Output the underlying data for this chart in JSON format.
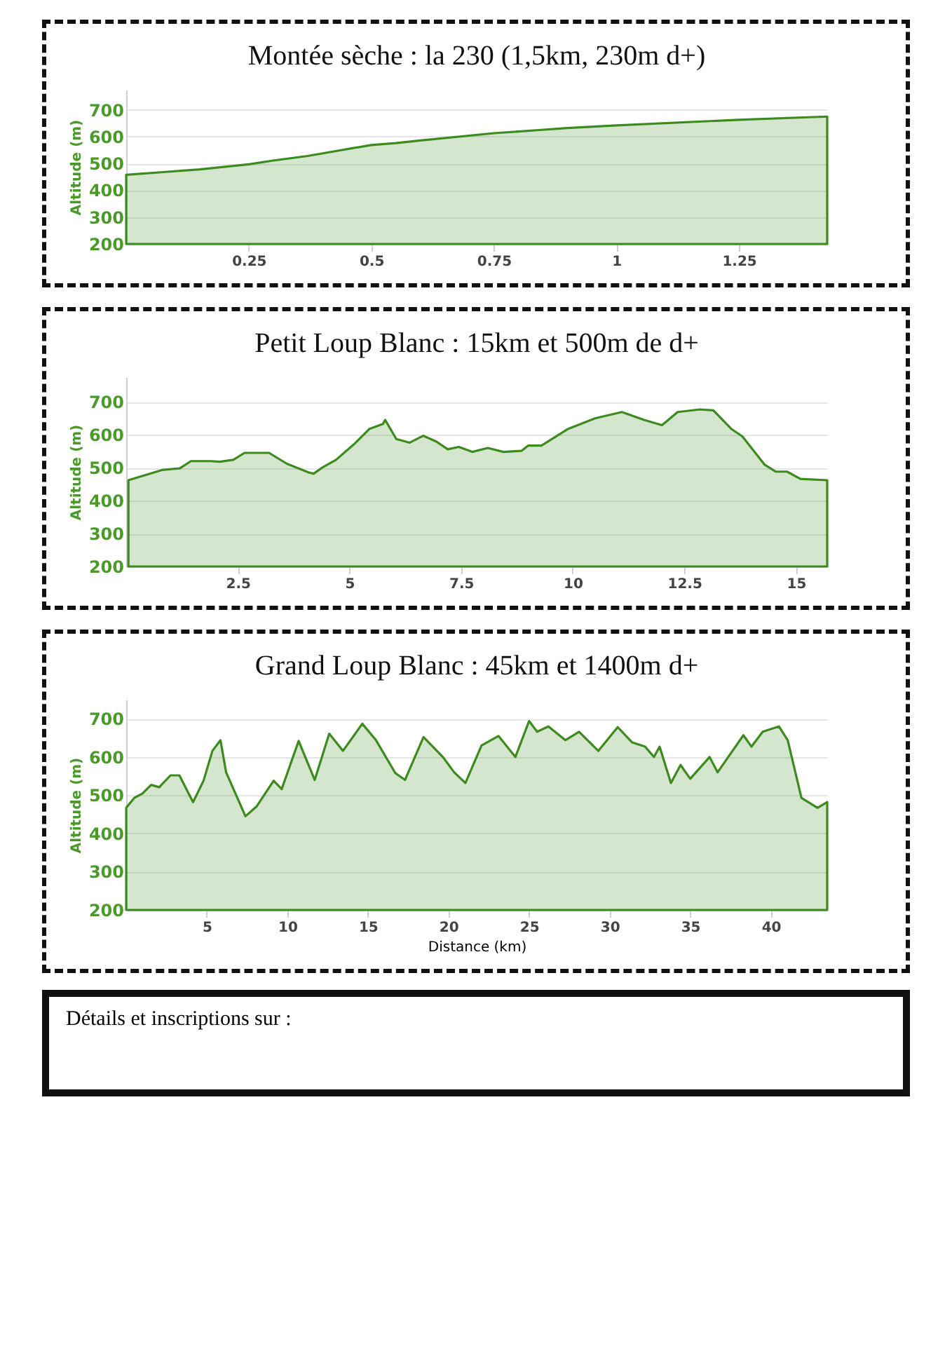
{
  "chart_data": [
    {
      "type": "area",
      "title": "Montée sèche : la 230  (1,5km, 230m d+)",
      "ylabel": "Altitude (m)",
      "grid": "y",
      "xlim": [
        0,
        1.43
      ],
      "xticks": [
        0.25,
        0.5,
        0.75,
        1,
        1.25
      ],
      "ylim": [
        200,
        775
      ],
      "yticks": [
        200,
        300,
        400,
        500,
        600,
        700
      ],
      "series": [
        {
          "color": "#3d8b1f",
          "x": [
            0,
            0.15,
            0.25,
            0.3,
            0.37,
            0.5,
            0.55,
            0.6,
            0.75,
            0.9,
            1.0,
            1.25,
            1.43
          ],
          "values": [
            458,
            478,
            497,
            511,
            528,
            569,
            576,
            586,
            613,
            632,
            642,
            663,
            675
          ]
        }
      ]
    },
    {
      "type": "area",
      "title": "Petit Loup Blanc : 15km et 500m de d+",
      "ylabel": "Altitude (m)",
      "grid": "y",
      "xlim": [
        0,
        15.7
      ],
      "xticks": [
        2.5,
        5,
        7.5,
        10,
        12.5,
        15
      ],
      "ylim": [
        200,
        775
      ],
      "yticks": [
        200,
        300,
        400,
        500,
        600,
        700
      ],
      "series": [
        {
          "color": "#3d8b1f",
          "x": [
            0.05,
            0.8,
            1.2,
            1.45,
            1.9,
            2.1,
            2.4,
            2.65,
            3.2,
            3.6,
            4.1,
            4.2,
            4.4,
            4.7,
            5.1,
            5.45,
            5.75,
            5.8,
            6.05,
            6.35,
            6.65,
            6.95,
            7.2,
            7.45,
            7.75,
            8.1,
            8.45,
            8.85,
            9.0,
            9.3,
            9.9,
            10.5,
            11.1,
            11.6,
            12.0,
            12.35,
            12.85,
            13.15,
            13.55,
            13.8,
            14.3,
            14.55,
            14.8,
            15.1,
            15.7
          ],
          "values": [
            462,
            493,
            498,
            520,
            520,
            518,
            524,
            545,
            545,
            512,
            485,
            482,
            501,
            524,
            571,
            618,
            633,
            645,
            587,
            576,
            597,
            579,
            556,
            563,
            548,
            560,
            548,
            551,
            567,
            567,
            618,
            650,
            669,
            645,
            629,
            669,
            677,
            674,
            618,
            595,
            509,
            488,
            488,
            466,
            462
          ]
        }
      ]
    },
    {
      "type": "area",
      "title": "Grand Loup Blanc : 45km et 1400m d+",
      "xlabel": "Distance (km)",
      "ylabel": "Altitude (m)",
      "grid": "y",
      "xlim": [
        0,
        43.5
      ],
      "xticks": [
        5,
        10,
        15,
        20,
        25,
        30,
        35,
        40
      ],
      "ylim": [
        200,
        750
      ],
      "yticks": [
        200,
        300,
        400,
        500,
        600,
        700
      ],
      "annotations": [
        "Détails et inscriptions sur :"
      ],
      "series": [
        {
          "color": "#3d8b1f",
          "x": [
            0,
            0.5,
            1.0,
            1.55,
            2.05,
            2.75,
            3.3,
            4.15,
            4.8,
            5.35,
            5.85,
            6.2,
            7.4,
            8.1,
            9.15,
            9.65,
            10.7,
            11.7,
            12.6,
            13.45,
            14.65,
            15.5,
            16.7,
            17.3,
            18.45,
            19.65,
            20.35,
            21.05,
            22.05,
            23.1,
            24.15,
            25.0,
            25.5,
            26.2,
            27.25,
            28.1,
            29.3,
            30.5,
            31.4,
            32.2,
            32.75,
            33.1,
            33.8,
            34.4,
            35.0,
            36.2,
            36.7,
            38.3,
            38.8,
            39.5,
            40.5,
            41.05,
            41.9,
            42.9,
            43.5
          ],
          "values": [
            467,
            493,
            504,
            527,
            521,
            552,
            552,
            482,
            538,
            616,
            644,
            560,
            445,
            471,
            538,
            516,
            642,
            540,
            661,
            616,
            687,
            644,
            558,
            540,
            652,
            600,
            560,
            532,
            630,
            655,
            600,
            694,
            666,
            680,
            644,
            666,
            616,
            678,
            638,
            627,
            600,
            627,
            532,
            579,
            543,
            600,
            560,
            657,
            627,
            666,
            680,
            644,
            493,
            467,
            482
          ]
        }
      ]
    }
  ]
}
